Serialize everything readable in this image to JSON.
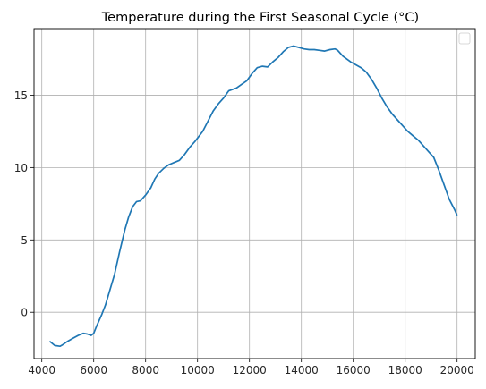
{
  "colors": {
    "line": "#1f77b4",
    "grid": "#b0b0b0",
    "axis": "#000000",
    "background": "#ffffff"
  },
  "chart_data": {
    "type": "line",
    "title": "Temperature during the First Seasonal Cycle (°C)",
    "xlabel": "",
    "ylabel": "",
    "xlim": [
      3700,
      20700
    ],
    "ylim": [
      -3.2,
      19.6
    ],
    "grid": true,
    "legend": "top-right",
    "x_ticks": [
      4000,
      6000,
      8000,
      10000,
      12000,
      14000,
      16000,
      18000,
      20000
    ],
    "y_ticks": [
      0,
      5,
      10,
      15
    ],
    "series": [
      {
        "x": [
          4300,
          4500,
          4700,
          4800,
          5000,
          5200,
          5400,
          5600,
          5750,
          5900,
          6000,
          6100,
          6300,
          6450,
          6600,
          6800,
          7000,
          7200,
          7350,
          7500,
          7650,
          7800,
          8000,
          8200,
          8350,
          8500,
          8700,
          8900,
          9100,
          9300,
          9500,
          9700,
          9900,
          10200,
          10400,
          10600,
          10800,
          11000,
          11200,
          11500,
          11700,
          11900,
          12100,
          12300,
          12500,
          12700,
          12900,
          13100,
          13300,
          13500,
          13700,
          13900,
          14100,
          14300,
          14500,
          14700,
          14900,
          15100,
          15300,
          15400,
          15600,
          15900,
          16100,
          16300,
          16500,
          16700,
          16900,
          17100,
          17300,
          17500,
          17700,
          17900,
          18100,
          18300,
          18500,
          18700,
          18900,
          19100,
          19300,
          19500,
          19700,
          19900,
          20000
        ],
        "y": [
          -2.0,
          -2.3,
          -2.35,
          -2.25,
          -2.0,
          -1.8,
          -1.6,
          -1.45,
          -1.5,
          -1.6,
          -1.45,
          -1.0,
          -0.2,
          0.5,
          1.4,
          2.6,
          4.2,
          5.7,
          6.6,
          7.3,
          7.65,
          7.7,
          8.1,
          8.6,
          9.2,
          9.6,
          9.95,
          10.2,
          10.35,
          10.5,
          10.9,
          11.4,
          11.8,
          12.5,
          13.2,
          13.9,
          14.4,
          14.8,
          15.3,
          15.5,
          15.75,
          16.0,
          16.5,
          16.9,
          17.0,
          16.95,
          17.3,
          17.6,
          18.0,
          18.3,
          18.4,
          18.3,
          18.2,
          18.15,
          18.15,
          18.1,
          18.05,
          18.15,
          18.2,
          18.1,
          17.7,
          17.3,
          17.1,
          16.9,
          16.6,
          16.1,
          15.5,
          14.8,
          14.2,
          13.7,
          13.3,
          12.9,
          12.5,
          12.2,
          11.9,
          11.5,
          11.1,
          10.7,
          9.8,
          8.8,
          7.8,
          7.1,
          6.7
        ]
      }
    ]
  }
}
